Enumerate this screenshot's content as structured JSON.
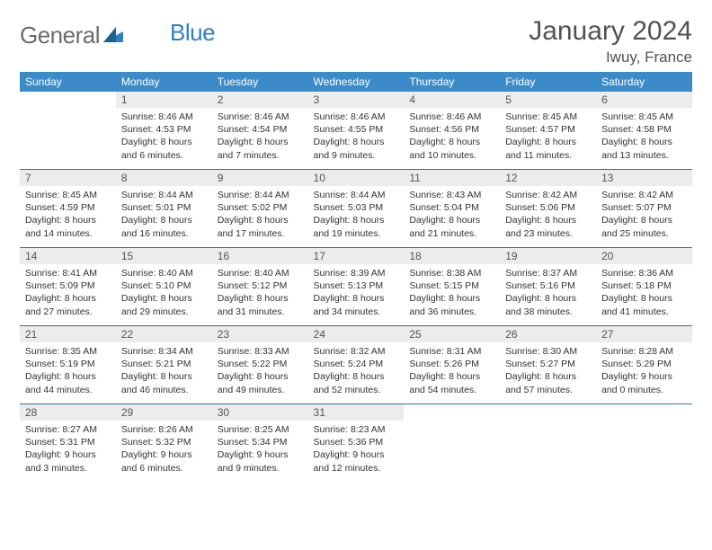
{
  "brand": {
    "part1": "General",
    "part2": "Blue"
  },
  "title": "January 2024",
  "location": "Iwuy, France",
  "colors": {
    "header_bg": "#3b8bc9",
    "header_text": "#ffffff",
    "daynum_bg": "#ececec",
    "border": "#2f6fa5",
    "logo_gray": "#6b6b6b",
    "logo_blue": "#2f7fc2"
  },
  "fonts": {
    "title_size": 30,
    "location_size": 17,
    "dayheader_size": 12,
    "daynum_size": 12,
    "body_size": 10.5
  },
  "day_headers": [
    "Sunday",
    "Monday",
    "Tuesday",
    "Wednesday",
    "Thursday",
    "Friday",
    "Saturday"
  ],
  "weeks": [
    [
      {
        "n": "",
        "sr": "",
        "ss": "",
        "dl": "",
        "empty": true
      },
      {
        "n": "1",
        "sr": "Sunrise: 8:46 AM",
        "ss": "Sunset: 4:53 PM",
        "dl": "Daylight: 8 hours and 6 minutes."
      },
      {
        "n": "2",
        "sr": "Sunrise: 8:46 AM",
        "ss": "Sunset: 4:54 PM",
        "dl": "Daylight: 8 hours and 7 minutes."
      },
      {
        "n": "3",
        "sr": "Sunrise: 8:46 AM",
        "ss": "Sunset: 4:55 PM",
        "dl": "Daylight: 8 hours and 9 minutes."
      },
      {
        "n": "4",
        "sr": "Sunrise: 8:46 AM",
        "ss": "Sunset: 4:56 PM",
        "dl": "Daylight: 8 hours and 10 minutes."
      },
      {
        "n": "5",
        "sr": "Sunrise: 8:45 AM",
        "ss": "Sunset: 4:57 PM",
        "dl": "Daylight: 8 hours and 11 minutes."
      },
      {
        "n": "6",
        "sr": "Sunrise: 8:45 AM",
        "ss": "Sunset: 4:58 PM",
        "dl": "Daylight: 8 hours and 13 minutes."
      }
    ],
    [
      {
        "n": "7",
        "sr": "Sunrise: 8:45 AM",
        "ss": "Sunset: 4:59 PM",
        "dl": "Daylight: 8 hours and 14 minutes."
      },
      {
        "n": "8",
        "sr": "Sunrise: 8:44 AM",
        "ss": "Sunset: 5:01 PM",
        "dl": "Daylight: 8 hours and 16 minutes."
      },
      {
        "n": "9",
        "sr": "Sunrise: 8:44 AM",
        "ss": "Sunset: 5:02 PM",
        "dl": "Daylight: 8 hours and 17 minutes."
      },
      {
        "n": "10",
        "sr": "Sunrise: 8:44 AM",
        "ss": "Sunset: 5:03 PM",
        "dl": "Daylight: 8 hours and 19 minutes."
      },
      {
        "n": "11",
        "sr": "Sunrise: 8:43 AM",
        "ss": "Sunset: 5:04 PM",
        "dl": "Daylight: 8 hours and 21 minutes."
      },
      {
        "n": "12",
        "sr": "Sunrise: 8:42 AM",
        "ss": "Sunset: 5:06 PM",
        "dl": "Daylight: 8 hours and 23 minutes."
      },
      {
        "n": "13",
        "sr": "Sunrise: 8:42 AM",
        "ss": "Sunset: 5:07 PM",
        "dl": "Daylight: 8 hours and 25 minutes."
      }
    ],
    [
      {
        "n": "14",
        "sr": "Sunrise: 8:41 AM",
        "ss": "Sunset: 5:09 PM",
        "dl": "Daylight: 8 hours and 27 minutes."
      },
      {
        "n": "15",
        "sr": "Sunrise: 8:40 AM",
        "ss": "Sunset: 5:10 PM",
        "dl": "Daylight: 8 hours and 29 minutes."
      },
      {
        "n": "16",
        "sr": "Sunrise: 8:40 AM",
        "ss": "Sunset: 5:12 PM",
        "dl": "Daylight: 8 hours and 31 minutes."
      },
      {
        "n": "17",
        "sr": "Sunrise: 8:39 AM",
        "ss": "Sunset: 5:13 PM",
        "dl": "Daylight: 8 hours and 34 minutes."
      },
      {
        "n": "18",
        "sr": "Sunrise: 8:38 AM",
        "ss": "Sunset: 5:15 PM",
        "dl": "Daylight: 8 hours and 36 minutes."
      },
      {
        "n": "19",
        "sr": "Sunrise: 8:37 AM",
        "ss": "Sunset: 5:16 PM",
        "dl": "Daylight: 8 hours and 38 minutes."
      },
      {
        "n": "20",
        "sr": "Sunrise: 8:36 AM",
        "ss": "Sunset: 5:18 PM",
        "dl": "Daylight: 8 hours and 41 minutes."
      }
    ],
    [
      {
        "n": "21",
        "sr": "Sunrise: 8:35 AM",
        "ss": "Sunset: 5:19 PM",
        "dl": "Daylight: 8 hours and 44 minutes."
      },
      {
        "n": "22",
        "sr": "Sunrise: 8:34 AM",
        "ss": "Sunset: 5:21 PM",
        "dl": "Daylight: 8 hours and 46 minutes."
      },
      {
        "n": "23",
        "sr": "Sunrise: 8:33 AM",
        "ss": "Sunset: 5:22 PM",
        "dl": "Daylight: 8 hours and 49 minutes."
      },
      {
        "n": "24",
        "sr": "Sunrise: 8:32 AM",
        "ss": "Sunset: 5:24 PM",
        "dl": "Daylight: 8 hours and 52 minutes."
      },
      {
        "n": "25",
        "sr": "Sunrise: 8:31 AM",
        "ss": "Sunset: 5:26 PM",
        "dl": "Daylight: 8 hours and 54 minutes."
      },
      {
        "n": "26",
        "sr": "Sunrise: 8:30 AM",
        "ss": "Sunset: 5:27 PM",
        "dl": "Daylight: 8 hours and 57 minutes."
      },
      {
        "n": "27",
        "sr": "Sunrise: 8:28 AM",
        "ss": "Sunset: 5:29 PM",
        "dl": "Daylight: 9 hours and 0 minutes."
      }
    ],
    [
      {
        "n": "28",
        "sr": "Sunrise: 8:27 AM",
        "ss": "Sunset: 5:31 PM",
        "dl": "Daylight: 9 hours and 3 minutes."
      },
      {
        "n": "29",
        "sr": "Sunrise: 8:26 AM",
        "ss": "Sunset: 5:32 PM",
        "dl": "Daylight: 9 hours and 6 minutes."
      },
      {
        "n": "30",
        "sr": "Sunrise: 8:25 AM",
        "ss": "Sunset: 5:34 PM",
        "dl": "Daylight: 9 hours and 9 minutes."
      },
      {
        "n": "31",
        "sr": "Sunrise: 8:23 AM",
        "ss": "Sunset: 5:36 PM",
        "dl": "Daylight: 9 hours and 12 minutes."
      },
      {
        "n": "",
        "sr": "",
        "ss": "",
        "dl": "",
        "empty": true
      },
      {
        "n": "",
        "sr": "",
        "ss": "",
        "dl": "",
        "empty": true
      },
      {
        "n": "",
        "sr": "",
        "ss": "",
        "dl": "",
        "empty": true
      }
    ]
  ]
}
